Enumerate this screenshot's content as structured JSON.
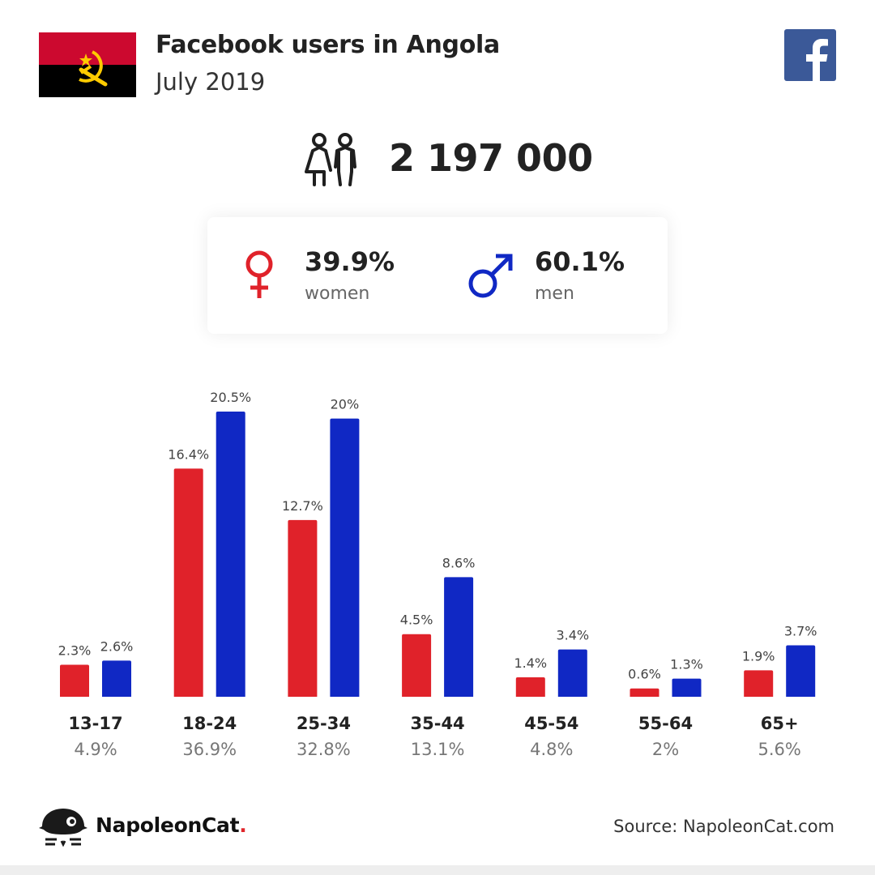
{
  "header": {
    "title": "Facebook users in Angola",
    "subtitle": "July 2019",
    "flag_colors": {
      "top": "#cc092f",
      "bottom": "#000000",
      "emblem": "#ffcb00"
    }
  },
  "total": {
    "value": "2 197 000",
    "icon": "users-icon"
  },
  "gender": {
    "women": {
      "pct": "39.9%",
      "label": "women",
      "icon": "female-symbol-icon",
      "color": "#e0222a"
    },
    "men": {
      "pct": "60.1%",
      "label": "men",
      "icon": "male-symbol-icon",
      "color": "#1028c4"
    }
  },
  "facebook_icon": {
    "icon": "facebook-icon",
    "color": "#3b5998"
  },
  "chart_data": {
    "type": "bar",
    "categories": [
      "13-17",
      "18-24",
      "25-34",
      "35-44",
      "45-54",
      "55-64",
      "65+"
    ],
    "group_totals": [
      "4.9%",
      "36.9%",
      "32.8%",
      "13.1%",
      "4.8%",
      "2%",
      "5.6%"
    ],
    "series": [
      {
        "values": [
          2.3,
          16.4,
          12.7,
          4.5,
          1.4,
          0.6,
          1.9
        ],
        "labels": [
          "2.3%",
          "16.4%",
          "12.7%",
          "4.5%",
          "1.4%",
          "0.6%",
          "1.9%"
        ],
        "color": "#e0222a"
      },
      {
        "values": [
          2.6,
          20.5,
          20,
          8.6,
          3.4,
          1.3,
          3.7
        ],
        "labels": [
          "2.6%",
          "20.5%",
          "20%",
          "8.6%",
          "3.4%",
          "1.3%",
          "3.7%"
        ],
        "color": "#1028c4"
      }
    ],
    "grid": false,
    "axes_visible": false
  },
  "footer": {
    "brand": "NapoleonCat",
    "brand_dot": ".",
    "source": "Source: NapoleonCat.com",
    "logo_icon": "napoleoncat-logo-icon"
  }
}
